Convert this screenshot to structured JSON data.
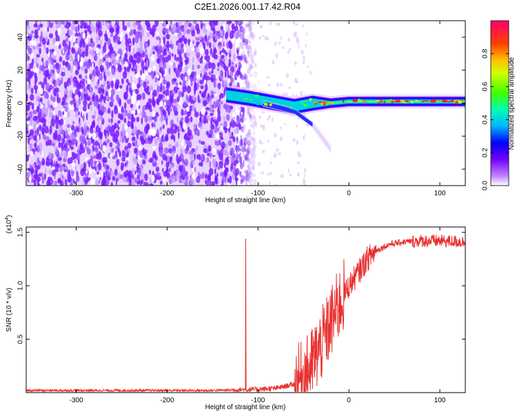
{
  "title": "C2E1.2026.001.17.42.R04",
  "chart_data": [
    {
      "type": "heatmap",
      "name": "spectrogram",
      "xlabel": "Height of straight line (km)",
      "ylabel": "Frequency (Hz)",
      "xlim": [
        -355,
        128
      ],
      "ylim": [
        -50,
        50
      ],
      "xticks": [
        -300,
        -200,
        -100,
        0,
        100
      ],
      "xtick_labels": [
        "-300",
        "-200",
        "-100",
        "0",
        "100"
      ],
      "yticks": [
        -40,
        -20,
        0,
        20,
        40
      ],
      "ytick_labels": [
        "-40",
        "-20",
        "0",
        "20",
        "40"
      ],
      "colorbar": {
        "label": "Normalized spectral amplitude",
        "range": [
          0,
          1
        ],
        "ticks": [
          0.0,
          0.2,
          0.4,
          0.6,
          0.8
        ],
        "tick_labels": [
          "0.0",
          "0.2",
          "0.4",
          "0.6",
          "0.8"
        ],
        "colors": [
          "#ffffff",
          "#8000ff",
          "#0000ff",
          "#00c8ff",
          "#00ff80",
          "#80ff00",
          "#ffff00",
          "#ff8000",
          "#ff0000",
          "#ff0060"
        ]
      },
      "noise_region": {
        "x": [
          -355,
          -125
        ],
        "y": [
          -50,
          50
        ],
        "amplitude": [
          0.05,
          0.25
        ]
      },
      "signal_track": [
        {
          "x": -135,
          "y": 5
        },
        {
          "x": -110,
          "y": 3
        },
        {
          "x": -80,
          "y": 0
        },
        {
          "x": -60,
          "y": -2
        },
        {
          "x": -40,
          "y": 0
        },
        {
          "x": -20,
          "y": 0
        },
        {
          "x": 0,
          "y": 1
        },
        {
          "x": 40,
          "y": 1
        },
        {
          "x": 80,
          "y": 1
        },
        {
          "x": 128,
          "y": 1
        }
      ],
      "branch_track": [
        {
          "x": -95,
          "y": 0
        },
        {
          "x": -60,
          "y": -5
        },
        {
          "x": -40,
          "y": -13
        },
        {
          "x": -20,
          "y": -28
        }
      ]
    },
    {
      "type": "line",
      "name": "snr",
      "xlabel": "Height of straight line (km)",
      "ylabel": "SNR (10 * v/v)",
      "scale_label": "(x10",
      "scale_exp": "4",
      "scale_close": ")",
      "xlim": [
        -355,
        128
      ],
      "ylim": [
        0,
        1.55
      ],
      "xticks": [
        -300,
        -200,
        -100,
        0,
        100
      ],
      "xtick_labels": [
        "-300",
        "-200",
        "-100",
        "0",
        "100"
      ],
      "yticks": [
        0.5,
        1.0,
        1.5
      ],
      "ytick_labels": [
        "0.5",
        "1.0",
        "1.5"
      ],
      "color": "#e83030",
      "series": [
        {
          "name": "SNR",
          "x": [
            -355,
            -150,
            -100,
            -80,
            -60,
            -45,
            -30,
            -15,
            0,
            10,
            20,
            30,
            45,
            60,
            80,
            100,
            128
          ],
          "values": [
            0.02,
            0.02,
            0.03,
            0.04,
            0.08,
            0.2,
            0.45,
            0.75,
            1.0,
            1.12,
            1.25,
            1.33,
            1.39,
            1.41,
            1.42,
            1.42,
            1.41
          ]
        }
      ]
    }
  ]
}
